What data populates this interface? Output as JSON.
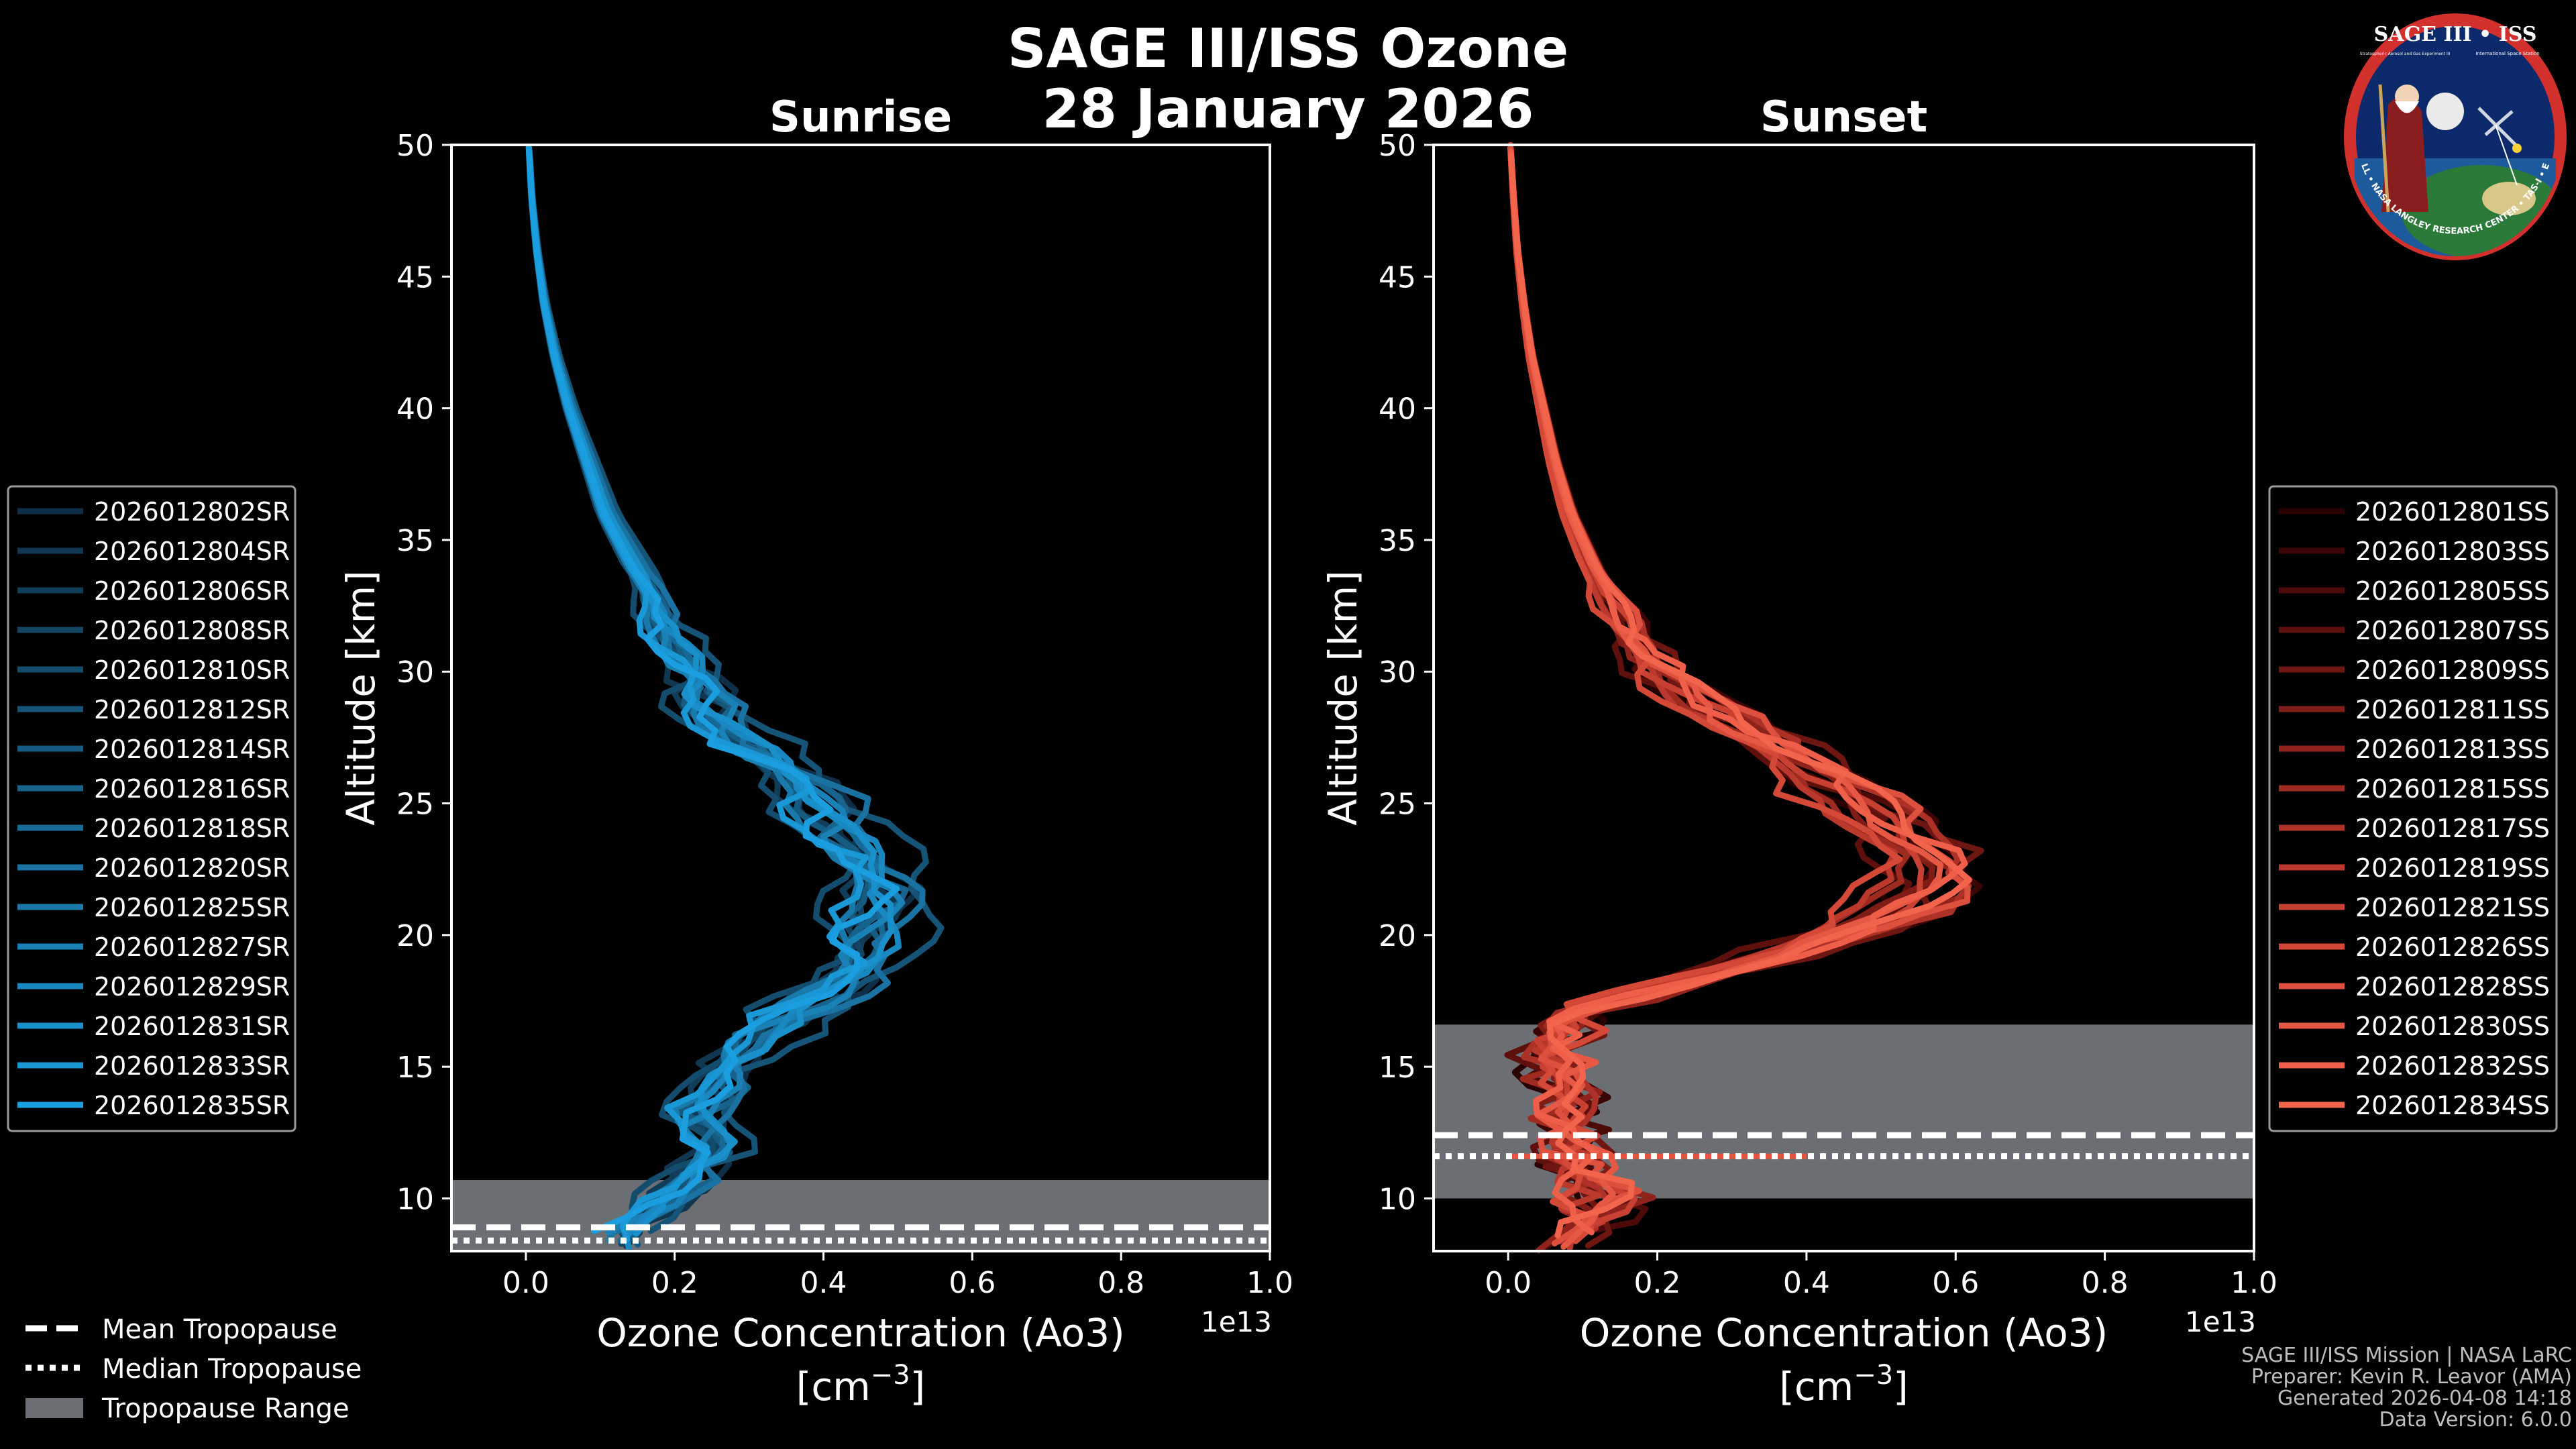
{
  "title": {
    "line1": "SAGE III/ISS Ozone",
    "line2": "28 January 2026"
  },
  "colors": {
    "background": "#000000",
    "sunrise_accent": "#1a9ae0",
    "sunset_accent": "#f0604a",
    "tropopause_band": "#6b6e72"
  },
  "legend_tropopause": {
    "mean": "Mean Tropopause",
    "median": "Median Tropopause",
    "range": "Tropopause Range"
  },
  "credits": {
    "line1": "SAGE III/ISS Mission | NASA LaRC",
    "line2": "Preparer: Kevin R. Leavor (AMA)",
    "line3": "Generated 2026-04-08 14:18",
    "line4": "Data Version: 6.0.0"
  },
  "logo": {
    "top_text": "SAGE III • ISS",
    "ring_text": "BALL • NASA LANGLEY RESEARCH CENTER • TAS-I • ESA",
    "sub_left": "Stratospheric Aerosol and Gas Experiment III",
    "sub_right": "International Space Station"
  },
  "chart_data": [
    {
      "type": "line",
      "title": "Sunrise",
      "xlabel": "Ozone Concentration (Ao3)",
      "xunit": "[cm",
      "xunit_exp": "−3",
      "xunit_close": "]",
      "ylabel": "Altitude [km]",
      "xlim": [
        -0.1,
        1.0
      ],
      "ylim": [
        8,
        50
      ],
      "x_scale_label": "1e13",
      "xticks": [
        "0.0",
        "0.2",
        "0.4",
        "0.6",
        "0.8",
        "1.0"
      ],
      "yticks": [
        "10",
        "15",
        "20",
        "25",
        "30",
        "35",
        "40",
        "45",
        "50"
      ],
      "tropopause": {
        "mean": 8.9,
        "median": 8.4,
        "range": [
          8.0,
          10.7
        ]
      },
      "legend": [
        "2026012802SR",
        "2026012804SR",
        "2026012806SR",
        "2026012808SR",
        "2026012810SR",
        "2026012812SR",
        "2026012814SR",
        "2026012816SR",
        "2026012818SR",
        "2026012820SR",
        "2026012825SR",
        "2026012827SR",
        "2026012829SR",
        "2026012831SR",
        "2026012833SR",
        "2026012835SR"
      ],
      "series_colors": [
        "#0f2f48",
        "#11364f",
        "#123d59",
        "#134563",
        "#144c6d",
        "#155477",
        "#165b81",
        "#17638c",
        "#186a96",
        "#1972a1",
        "#1979ab",
        "#1a81b6",
        "#1a88c0",
        "#1a90ca",
        "#1a97d5",
        "#1a9ee0"
      ],
      "mean_profile": {
        "altitude": [
          8.5,
          9,
          10,
          11,
          12,
          13,
          14,
          15,
          16,
          17,
          18,
          19,
          20,
          21,
          22,
          23,
          24,
          25,
          26,
          27,
          28,
          29,
          30,
          31,
          32,
          33,
          34,
          35,
          36,
          38,
          40,
          42,
          44,
          46,
          48,
          50
        ],
        "value": [
          0.12,
          0.15,
          0.2,
          0.22,
          0.26,
          0.24,
          0.26,
          0.27,
          0.31,
          0.37,
          0.42,
          0.45,
          0.47,
          0.49,
          0.47,
          0.45,
          0.43,
          0.4,
          0.36,
          0.31,
          0.27,
          0.24,
          0.22,
          0.2,
          0.185,
          0.17,
          0.15,
          0.13,
          0.11,
          0.085,
          0.06,
          0.04,
          0.025,
          0.015,
          0.008,
          0.004
        ]
      }
    },
    {
      "type": "line",
      "title": "Sunset",
      "xlabel": "Ozone Concentration (Ao3)",
      "xunit": "[cm",
      "xunit_exp": "−3",
      "xunit_close": "]",
      "ylabel": "Altitude [km]",
      "xlim": [
        -0.1,
        1.0
      ],
      "ylim": [
        8,
        50
      ],
      "x_scale_label": "1e13",
      "xticks": [
        "0.0",
        "0.2",
        "0.4",
        "0.6",
        "0.8",
        "1.0"
      ],
      "yticks": [
        "10",
        "15",
        "20",
        "25",
        "30",
        "35",
        "40",
        "45",
        "50"
      ],
      "tropopause": {
        "mean": 12.4,
        "median": 11.6,
        "range": [
          10.0,
          16.6
        ]
      },
      "legend": [
        "2026012801SS",
        "2026012803SS",
        "2026012805SS",
        "2026012807SS",
        "2026012809SS",
        "2026012811SS",
        "2026012813SS",
        "2026012815SS",
        "2026012817SS",
        "2026012819SS",
        "2026012821SS",
        "2026012826SS",
        "2026012828SS",
        "2026012830SS",
        "2026012832SS",
        "2026012834SS"
      ],
      "series_colors": [
        "#2a0000",
        "#3a0504",
        "#4c0a08",
        "#5d100c",
        "#6e1611",
        "#7f1c16",
        "#8f231b",
        "#9f2a20",
        "#ad3126",
        "#bb392c",
        "#c84032",
        "#d44838",
        "#de503e",
        "#e75844",
        "#ee5e48",
        "#f2644c"
      ],
      "mean_profile": {
        "altitude": [
          8.2,
          9,
          10,
          11,
          12,
          13,
          14,
          15,
          16,
          17,
          18,
          19,
          20,
          21,
          22,
          23,
          24,
          25,
          26,
          27,
          28,
          29,
          30,
          31,
          32,
          33,
          34,
          35,
          36,
          38,
          40,
          42,
          44,
          46,
          48,
          50
        ],
        "value": [
          0.07,
          0.1,
          0.12,
          0.1,
          0.08,
          0.07,
          0.07,
          0.07,
          0.06,
          0.08,
          0.2,
          0.33,
          0.43,
          0.52,
          0.56,
          0.55,
          0.5,
          0.47,
          0.42,
          0.36,
          0.3,
          0.25,
          0.2,
          0.17,
          0.15,
          0.13,
          0.11,
          0.095,
          0.08,
          0.06,
          0.045,
          0.03,
          0.02,
          0.012,
          0.007,
          0.003
        ]
      }
    }
  ]
}
